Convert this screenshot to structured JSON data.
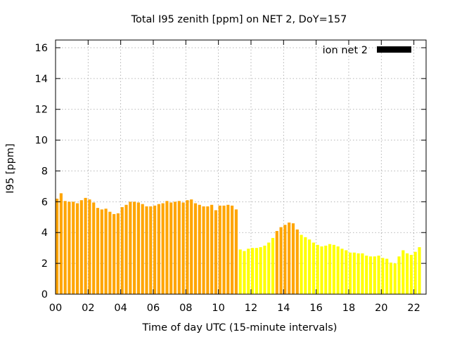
{
  "chart_data": {
    "type": "bar",
    "title": "Total I95 zenith [ppm] on NET 2, DoY=157",
    "xlabel": "Time of day UTC (15-minute intervals)",
    "ylabel": "I95 [ppm]",
    "xlim": [
      0,
      22.75
    ],
    "ylim": [
      0,
      16.5
    ],
    "x_ticks": [
      "00",
      "02",
      "04",
      "06",
      "08",
      "10",
      "12",
      "14",
      "16",
      "18",
      "20",
      "22"
    ],
    "y_ticks": [
      "0",
      "2",
      "4",
      "6",
      "8",
      "10",
      "12",
      "14",
      "16"
    ],
    "grid": true,
    "bar_interval_hours": 0.25,
    "legend": {
      "label": "ion net 2",
      "color": "#000000",
      "position": "top-right"
    },
    "colors": {
      "orange": "#ffa500",
      "yellow": "#ffff00"
    },
    "values": [
      6.2,
      6.55,
      6.05,
      6.0,
      6.0,
      5.9,
      6.1,
      6.25,
      6.15,
      5.95,
      5.6,
      5.5,
      5.55,
      5.35,
      5.2,
      5.25,
      5.65,
      5.8,
      6.0,
      6.0,
      5.95,
      5.85,
      5.7,
      5.7,
      5.75,
      5.85,
      5.9,
      6.05,
      5.95,
      6.0,
      6.05,
      5.95,
      6.1,
      6.15,
      5.9,
      5.8,
      5.7,
      5.7,
      5.8,
      5.45,
      5.75,
      5.75,
      5.8,
      5.75,
      5.5,
      2.9,
      2.8,
      2.95,
      3.0,
      3.0,
      3.05,
      3.15,
      3.35,
      3.65,
      4.1,
      4.35,
      4.5,
      4.65,
      4.6,
      4.2,
      3.85,
      3.7,
      3.55,
      3.35,
      3.2,
      3.1,
      3.15,
      3.25,
      3.2,
      3.1,
      2.95,
      2.85,
      2.7,
      2.7,
      2.65,
      2.65,
      2.5,
      2.45,
      2.45,
      2.5,
      2.35,
      2.3,
      2.05,
      2.0,
      2.45,
      2.85,
      2.65,
      2.55,
      2.75,
      3.05
    ],
    "bar_colors": [
      "orange",
      "orange",
      "orange",
      "orange",
      "orange",
      "orange",
      "orange",
      "orange",
      "orange",
      "orange",
      "orange",
      "orange",
      "orange",
      "orange",
      "orange",
      "orange",
      "orange",
      "orange",
      "orange",
      "orange",
      "orange",
      "orange",
      "orange",
      "orange",
      "orange",
      "orange",
      "orange",
      "orange",
      "orange",
      "orange",
      "orange",
      "orange",
      "orange",
      "orange",
      "orange",
      "orange",
      "orange",
      "orange",
      "orange",
      "orange",
      "orange",
      "orange",
      "orange",
      "orange",
      "orange",
      "yellow",
      "yellow",
      "yellow",
      "yellow",
      "yellow",
      "yellow",
      "yellow",
      "yellow",
      "yellow",
      "orange",
      "orange",
      "orange",
      "orange",
      "orange",
      "orange",
      "yellow",
      "yellow",
      "yellow",
      "yellow",
      "yellow",
      "yellow",
      "yellow",
      "yellow",
      "yellow",
      "yellow",
      "yellow",
      "yellow",
      "yellow",
      "yellow",
      "yellow",
      "yellow",
      "yellow",
      "yellow",
      "yellow",
      "yellow",
      "yellow",
      "yellow",
      "yellow",
      "yellow",
      "yellow",
      "yellow",
      "yellow",
      "yellow",
      "yellow",
      "yellow"
    ]
  }
}
